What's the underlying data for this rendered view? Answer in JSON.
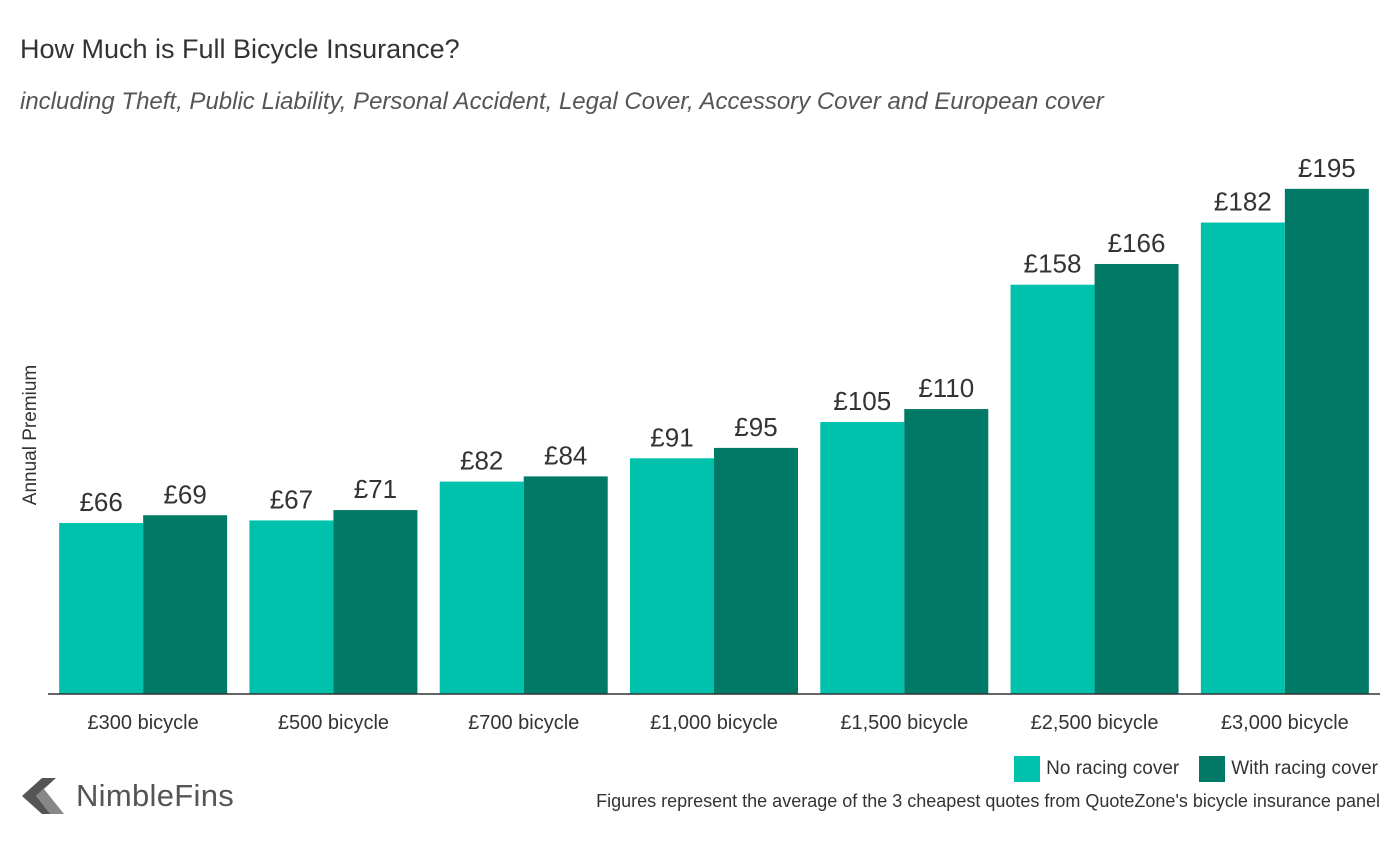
{
  "chart_data": {
    "type": "bar",
    "title": "How Much is Full Bicycle Insurance?",
    "subtitle": "including Theft, Public Liability, Personal Accident, Legal Cover, Accessory Cover and European cover",
    "ylabel": "Annual Premium",
    "xlabel": "",
    "ylim": [
      0,
      210
    ],
    "grid": false,
    "legend_position": "bottom-right",
    "value_prefix": "£",
    "categories": [
      "£300 bicycle",
      "£500 bicycle",
      "£700 bicycle",
      "£1,000 bicycle",
      "£1,500 bicycle",
      "£2,500 bicycle",
      "£3,000 bicycle"
    ],
    "series": [
      {
        "name": "No racing cover",
        "color": "#00c2ac",
        "values": [
          66,
          67,
          82,
          91,
          105,
          158,
          182
        ]
      },
      {
        "name": "With racing cover",
        "color": "#007a66",
        "values": [
          69,
          71,
          84,
          95,
          110,
          166,
          195
        ]
      }
    ]
  },
  "brand": {
    "name": "NimbleFins",
    "logo_icon": "chevron-arrow-icon"
  },
  "footnote": "Figures represent the average of the 3 cheapest quotes from QuoteZone's bicycle insurance panel"
}
